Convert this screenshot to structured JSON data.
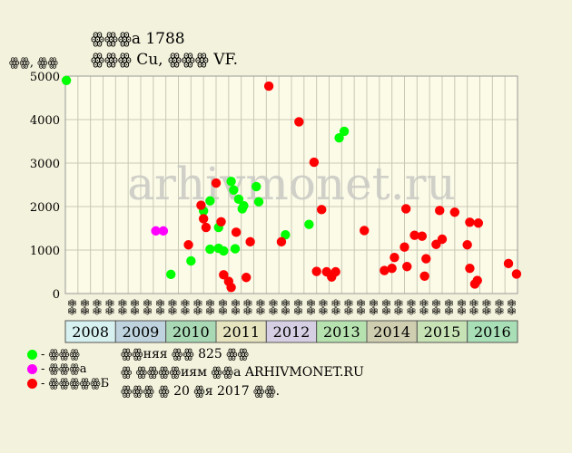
{
  "header": {
    "title": "ꙮꙮꙮa 1788",
    "subtitle": "ꙮꙮꙮ Cu, ꙮꙮꙮ VF.",
    "y_unit": "ꙮꙮ, ꙮꙮ"
  },
  "watermark": "arhivmonet.ru",
  "legend": [
    {
      "label": "- ꙮꙮꙮ",
      "color": "#00ff00"
    },
    {
      "label": "- ꙮꙮꙮa",
      "color": "#ff00ff"
    },
    {
      "label": "- ꙮꙮꙮꙮꙮБ",
      "color": "#ff0000"
    }
  ],
  "footer": [
    "ꙮꙮняя ꙮꙮ 825 ꙮꙮ",
    "ꙮ ꙮꙮꙮꙮиям ꙮꙮa ARHIVMONET.RU",
    "ꙮꙮꙮ ꙮ 20 ꙮя 2017 ꙮꙮ."
  ],
  "colors": {
    "background": "#f3f2dc",
    "plot_background": "#fbfbe8",
    "grid": "#c8c8b4"
  },
  "chart_data": {
    "type": "scatter",
    "title": "ꙮꙮꙮa 1788",
    "ylabel": "ꙮꙮ, ꙮꙮ",
    "ylim": [
      0,
      5000
    ],
    "yticks": [
      0,
      1000,
      2000,
      3000,
      4000,
      5000
    ],
    "grid": true,
    "quarter_labels": [
      "ꙮꙮ",
      "ꙮꙮ",
      "ꙮꙮ",
      "ꙮꙮ"
    ],
    "years": [
      {
        "label": "2008",
        "color": "#d6f1f0"
      },
      {
        "label": "2009",
        "color": "#bed3de"
      },
      {
        "label": "2010",
        "color": "#a8d9b4"
      },
      {
        "label": "2011",
        "color": "#e6e3bf"
      },
      {
        "label": "2012",
        "color": "#d6cfe3"
      },
      {
        "label": "2013",
        "color": "#b6e2b0"
      },
      {
        "label": "2014",
        "color": "#d0ceb0"
      },
      {
        "label": "2015",
        "color": "#c7e3b6"
      },
      {
        "label": "2016",
        "color": "#a8dfb6"
      }
    ],
    "series": [
      {
        "color": "#00ff00",
        "points": [
          [
            2008.02,
            4900
          ],
          [
            2010.1,
            440
          ],
          [
            2010.5,
            750
          ],
          [
            2010.75,
            1900
          ],
          [
            2010.88,
            2130
          ],
          [
            2010.88,
            1020
          ],
          [
            2011.05,
            1520
          ],
          [
            2011.05,
            1040
          ],
          [
            2011.15,
            980
          ],
          [
            2011.3,
            2580
          ],
          [
            2011.35,
            2380
          ],
          [
            2011.38,
            1030
          ],
          [
            2011.45,
            2170
          ],
          [
            2011.52,
            1950
          ],
          [
            2011.55,
            2020
          ],
          [
            2011.8,
            2460
          ],
          [
            2011.85,
            2110
          ],
          [
            2012.38,
            1350
          ],
          [
            2012.85,
            1590
          ],
          [
            2013.45,
            3580
          ],
          [
            2013.55,
            3730
          ]
        ]
      },
      {
        "color": "#ff00ff",
        "points": [
          [
            2009.8,
            1440
          ],
          [
            2009.95,
            1440
          ]
        ]
      },
      {
        "color": "#ff0000",
        "points": [
          [
            2010.45,
            1120
          ],
          [
            2010.7,
            2030
          ],
          [
            2010.75,
            1720
          ],
          [
            2010.8,
            1520
          ],
          [
            2011.0,
            2540
          ],
          [
            2011.1,
            1650
          ],
          [
            2011.15,
            430
          ],
          [
            2011.25,
            280
          ],
          [
            2011.3,
            140
          ],
          [
            2011.4,
            1410
          ],
          [
            2011.6,
            370
          ],
          [
            2011.68,
            1190
          ],
          [
            2012.05,
            4770
          ],
          [
            2012.3,
            1190
          ],
          [
            2012.65,
            3950
          ],
          [
            2012.95,
            3020
          ],
          [
            2013.0,
            510
          ],
          [
            2013.1,
            1930
          ],
          [
            2013.2,
            500
          ],
          [
            2013.3,
            380
          ],
          [
            2013.38,
            500
          ],
          [
            2013.95,
            1450
          ],
          [
            2014.35,
            530
          ],
          [
            2014.5,
            580
          ],
          [
            2014.55,
            830
          ],
          [
            2014.75,
            1070
          ],
          [
            2014.78,
            1950
          ],
          [
            2014.8,
            620
          ],
          [
            2014.95,
            1340
          ],
          [
            2015.1,
            1320
          ],
          [
            2015.15,
            400
          ],
          [
            2015.18,
            800
          ],
          [
            2015.38,
            1130
          ],
          [
            2015.45,
            1910
          ],
          [
            2015.5,
            1250
          ],
          [
            2015.75,
            1870
          ],
          [
            2016.0,
            1120
          ],
          [
            2016.05,
            1640
          ],
          [
            2016.05,
            580
          ],
          [
            2016.15,
            220
          ],
          [
            2016.2,
            300
          ],
          [
            2016.22,
            1620
          ],
          [
            2016.82,
            690
          ],
          [
            2016.98,
            450
          ]
        ]
      }
    ]
  }
}
